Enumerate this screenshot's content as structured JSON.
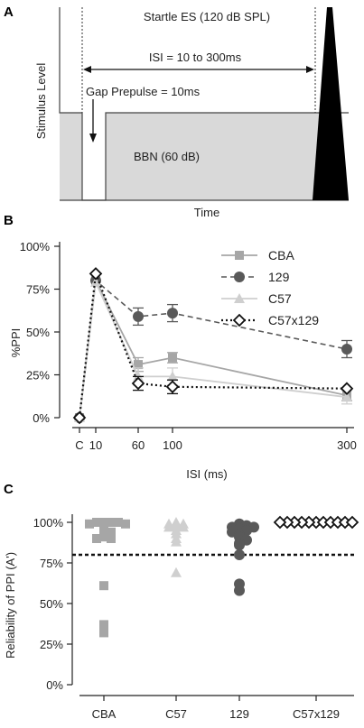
{
  "panels": [
    "A",
    "B",
    "C"
  ],
  "colors": {
    "cba": "#a6a6a6",
    "s129": "#595959",
    "c57": "#cfcfcf",
    "c57x129": "#111111",
    "bbn": "#d9d9d9"
  },
  "chart_data": [
    {
      "panel": "A",
      "type": "diagram",
      "ylabel": "Stimulus Level",
      "xlabel": "Time",
      "labels": {
        "startle": "Startle ES (120 dB SPL)",
        "isi": "ISI = 10 to 300ms",
        "gap": "Gap Prepulse = 10ms",
        "bbn": "BBN (60 dB)"
      }
    },
    {
      "panel": "B",
      "type": "line",
      "xlabel": "ISI (ms)",
      "ylabel": "%PPI",
      "x": [
        "C",
        10,
        60,
        100,
        300
      ],
      "x_tick_labels": [
        "C",
        "10",
        "60",
        "100",
        "300"
      ],
      "y_tick_labels": [
        "0%",
        "25%",
        "50%",
        "75%",
        "100%"
      ],
      "ylim": [
        0,
        100
      ],
      "legend_position": "top-right",
      "series": [
        {
          "name": "CBA",
          "marker": "square",
          "style": "solid",
          "color": "#a6a6a6",
          "values": [
            0,
            80,
            31,
            35,
            13
          ],
          "errors": [
            2,
            2,
            4,
            3,
            3
          ]
        },
        {
          "name": "129",
          "marker": "circle",
          "style": "dashed",
          "color": "#595959",
          "values": [
            0,
            80,
            59,
            61,
            40
          ],
          "errors": [
            2,
            2,
            5,
            5,
            5
          ]
        },
        {
          "name": "C57",
          "marker": "triangle",
          "style": "solid",
          "color": "#cfcfcf",
          "values": [
            0,
            79,
            24,
            24,
            12
          ],
          "errors": [
            2,
            2,
            5,
            5,
            4
          ]
        },
        {
          "name": "C57x129",
          "marker": "diamond",
          "style": "dotted",
          "color": "#111111",
          "values": [
            0,
            84,
            20,
            18,
            17
          ],
          "errors": [
            2,
            2,
            4,
            4,
            2
          ]
        }
      ]
    },
    {
      "panel": "C",
      "type": "scatter",
      "ylabel": "Reliability of PPI (A')",
      "categories": [
        "CBA",
        "C57",
        "129",
        "C57x129"
      ],
      "y_tick_labels": [
        "0%",
        "25%",
        "50%",
        "75%",
        "100%"
      ],
      "ylim": [
        0,
        100
      ],
      "reference_line": 80,
      "series": [
        {
          "name": "CBA",
          "marker": "square",
          "color": "#a6a6a6",
          "values": [
            100,
            100,
            100,
            100,
            99,
            99,
            98,
            96,
            94,
            92,
            91,
            90,
            90,
            61,
            37,
            32
          ]
        },
        {
          "name": "C57",
          "marker": "triangle",
          "color": "#cfcfcf",
          "values": [
            100,
            99,
            99,
            98,
            97,
            97,
            95,
            93,
            90,
            88,
            69
          ]
        },
        {
          "name": "129",
          "marker": "circle",
          "color": "#595959",
          "values": [
            99,
            98,
            98,
            97,
            97,
            96,
            95,
            94,
            92,
            91,
            89,
            87,
            86,
            80,
            62,
            58
          ]
        },
        {
          "name": "C57x129",
          "marker": "diamond",
          "color": "#111111",
          "values": [
            100,
            100,
            100,
            100,
            100,
            100,
            100,
            100,
            100,
            100,
            100
          ]
        }
      ]
    }
  ]
}
